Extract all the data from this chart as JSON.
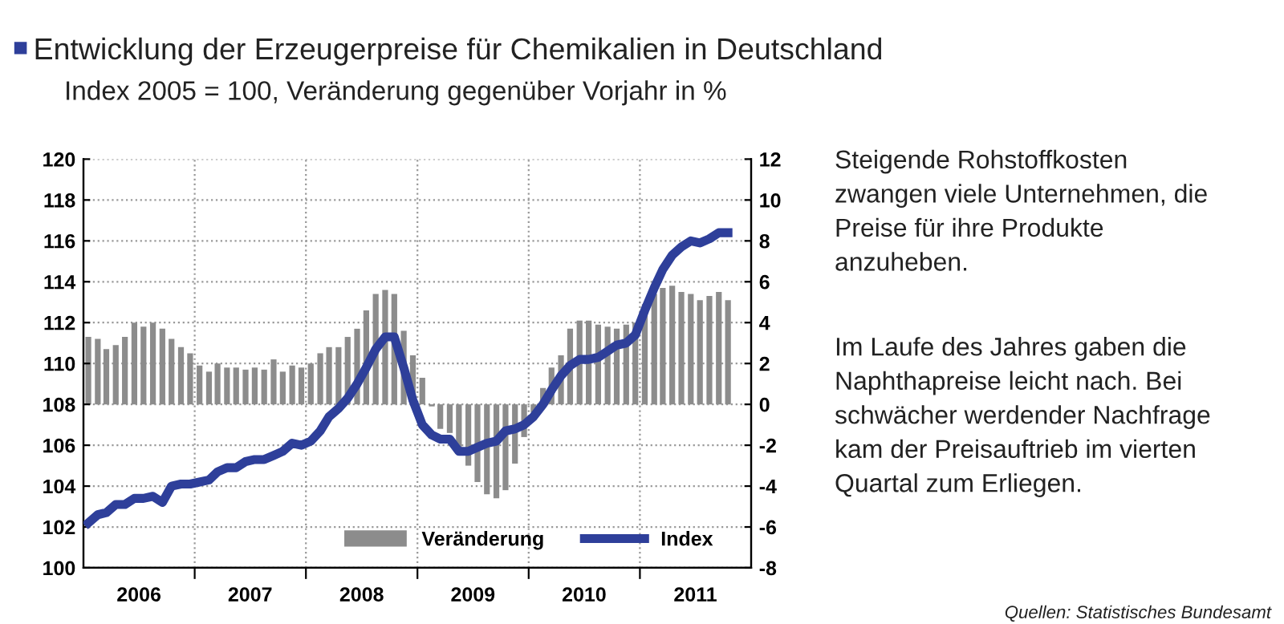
{
  "chart_data": {
    "type": "bar",
    "title": "Entwicklung der Erzeugerpreise für Chemikalien in Deutschland",
    "subtitle": "Index 2005 = 100, Veränderung gegenüber Vorjahr in %",
    "x": [
      "2006-01",
      "2006-02",
      "2006-03",
      "2006-04",
      "2006-05",
      "2006-06",
      "2006-07",
      "2006-08",
      "2006-09",
      "2006-10",
      "2006-11",
      "2006-12",
      "2007-01",
      "2007-02",
      "2007-03",
      "2007-04",
      "2007-05",
      "2007-06",
      "2007-07",
      "2007-08",
      "2007-09",
      "2007-10",
      "2007-11",
      "2007-12",
      "2008-01",
      "2008-02",
      "2008-03",
      "2008-04",
      "2008-05",
      "2008-06",
      "2008-07",
      "2008-08",
      "2008-09",
      "2008-10",
      "2008-11",
      "2008-12",
      "2009-01",
      "2009-02",
      "2009-03",
      "2009-04",
      "2009-05",
      "2009-06",
      "2009-07",
      "2009-08",
      "2009-09",
      "2009-10",
      "2009-11",
      "2009-12",
      "2010-01",
      "2010-02",
      "2010-03",
      "2010-04",
      "2010-05",
      "2010-06",
      "2010-07",
      "2010-08",
      "2010-09",
      "2010-10",
      "2010-11",
      "2010-12",
      "2011-01",
      "2011-02",
      "2011-03",
      "2011-04",
      "2011-05",
      "2011-06",
      "2011-07",
      "2011-08",
      "2011-09",
      "2011-10"
    ],
    "series": [
      {
        "name": "Veränderung",
        "axis": "y2",
        "color": "#8c8c8c",
        "values": [
          3.3,
          3.2,
          2.7,
          2.9,
          3.3,
          4.0,
          3.8,
          4.0,
          3.7,
          3.2,
          2.8,
          2.5,
          1.9,
          1.6,
          2.0,
          1.8,
          1.8,
          1.7,
          1.8,
          1.7,
          2.2,
          1.6,
          1.9,
          1.8,
          2.0,
          2.5,
          2.8,
          2.8,
          3.3,
          3.7,
          4.6,
          5.4,
          5.6,
          5.4,
          3.6,
          2.4,
          1.3,
          -0.1,
          -1.2,
          -1.4,
          -2.2,
          -3.0,
          -3.8,
          -4.4,
          -4.6,
          -4.2,
          -2.9,
          -1.6,
          -0.4,
          0.8,
          1.8,
          2.4,
          3.7,
          4.1,
          4.1,
          3.9,
          3.8,
          3.7,
          3.9,
          4.0,
          4.9,
          5.4,
          5.7,
          5.8,
          5.5,
          5.4,
          5.1,
          5.3,
          5.5,
          5.1
        ]
      },
      {
        "name": "Index",
        "type": "line",
        "color": "#2e3f9a",
        "values": [
          102.2,
          102.6,
          102.7,
          103.1,
          103.1,
          103.4,
          103.4,
          103.5,
          103.2,
          104.0,
          104.1,
          104.1,
          104.2,
          104.3,
          104.7,
          104.9,
          104.9,
          105.2,
          105.3,
          105.3,
          105.5,
          105.7,
          106.1,
          106.0,
          106.2,
          106.7,
          107.4,
          107.8,
          108.3,
          109.0,
          109.8,
          110.7,
          111.3,
          111.3,
          109.8,
          108.2,
          107.0,
          106.5,
          106.3,
          106.3,
          105.7,
          105.7,
          105.9,
          106.1,
          106.2,
          106.7,
          106.8,
          107.0,
          107.4,
          108.0,
          108.7,
          109.4,
          109.9,
          110.2,
          110.2,
          110.3,
          110.6,
          110.9,
          111.0,
          111.4,
          112.6,
          113.7,
          114.6,
          115.3,
          115.7,
          116.0,
          115.9,
          116.1,
          116.4,
          116.4
        ]
      }
    ],
    "xlim": [
      "2005-12-16",
      "2011-12-16"
    ],
    "xticks": [
      {
        "value": "2006-06-16",
        "label": "2006"
      },
      {
        "value": "2007-06-16",
        "label": "2007"
      },
      {
        "value": "2008-06-16",
        "label": "2008"
      },
      {
        "value": "2009-06-16",
        "label": "2009"
      },
      {
        "value": "2010-06-16",
        "label": "2010"
      },
      {
        "value": "2011-06-16",
        "label": "2011"
      },
      {
        "value": "2006-12-16",
        "label": null
      },
      {
        "value": "2007-12-16",
        "label": null
      },
      {
        "value": "2008-12-16",
        "label": null
      },
      {
        "value": "2009-12-16",
        "label": null
      },
      {
        "value": "2010-12-16",
        "label": null
      }
    ],
    "ylim": [
      100,
      120
    ],
    "yticks": [
      100,
      102,
      104,
      106,
      108,
      110,
      112,
      114,
      116,
      118,
      120
    ],
    "y2lim": [
      -8,
      12
    ],
    "y2ticks": [
      -8,
      -6,
      -4,
      -2,
      0,
      2,
      4,
      6,
      8,
      10,
      12
    ],
    "grid": true,
    "legend": "bottom right",
    "annotations": [
      "Steigende Rohstoffkosten\nzwangen viele Unternehmen, die\nPreise für ihre Produkte\nanzuheben.",
      "Im Laufe des Jahres gaben die\nNaphthapreise leicht nach. Bei\nschwächer werdender Nachfrage\nkam der Preisauftrieb im vierten\nQuartal zum Erliegen.",
      "Quellen: Statistisches Bundesamt"
    ]
  }
}
